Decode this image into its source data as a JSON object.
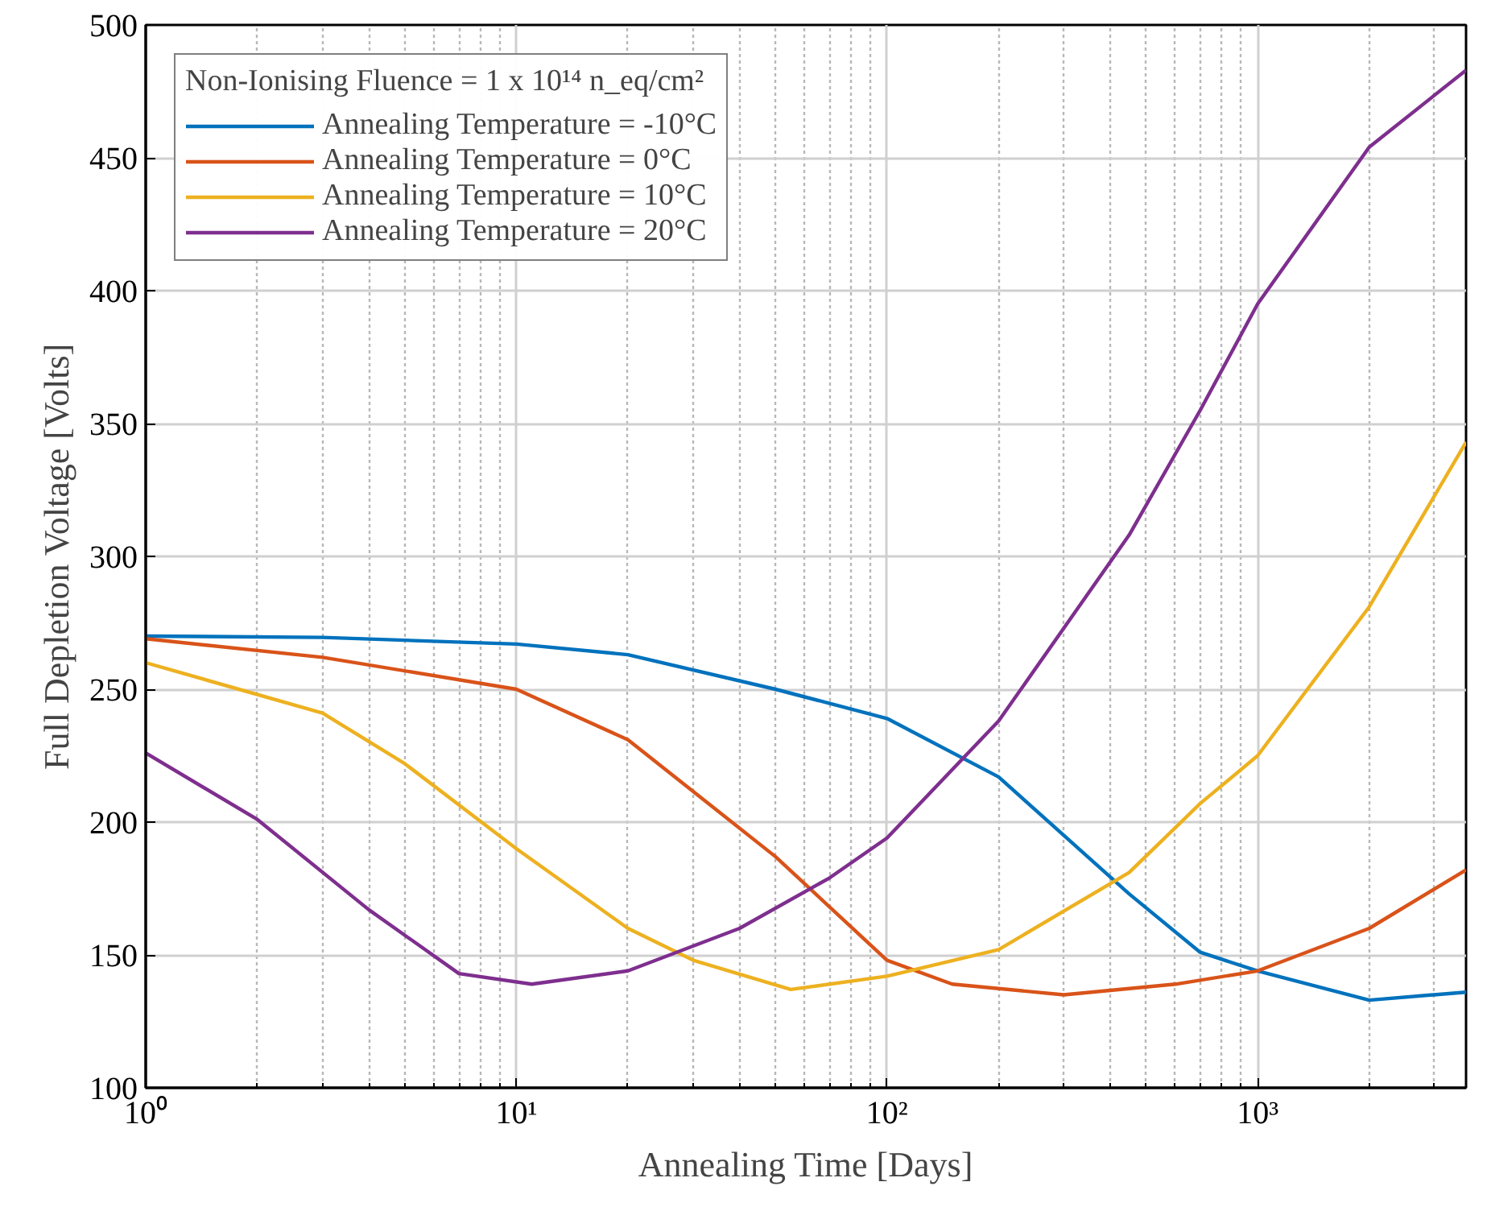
{
  "chart_data": {
    "type": "line",
    "xlabel": "Annealing Time [Days]",
    "ylabel": "Full Depletion Voltage [Volts]",
    "legend_title": "Non-Ionising Fluence = 1 x 10¹⁴ n_eq/cm²",
    "log": "x",
    "xlim": [
      1,
      3650
    ],
    "ylim": [
      100,
      500
    ],
    "xticks": [
      {
        "value": 1,
        "label": "10⁰"
      },
      {
        "value": 2,
        "label": null
      },
      {
        "value": 3,
        "label": null
      },
      {
        "value": 4,
        "label": null
      },
      {
        "value": 5,
        "label": null
      },
      {
        "value": 6,
        "label": null
      },
      {
        "value": 7,
        "label": null
      },
      {
        "value": 8,
        "label": null
      },
      {
        "value": 9,
        "label": null
      },
      {
        "value": 10,
        "label": "10¹"
      },
      {
        "value": 20,
        "label": null
      },
      {
        "value": 30,
        "label": null
      },
      {
        "value": 40,
        "label": null
      },
      {
        "value": 50,
        "label": null
      },
      {
        "value": 60,
        "label": null
      },
      {
        "value": 70,
        "label": null
      },
      {
        "value": 80,
        "label": null
      },
      {
        "value": 90,
        "label": null
      },
      {
        "value": 100,
        "label": "10²"
      },
      {
        "value": 200,
        "label": null
      },
      {
        "value": 300,
        "label": null
      },
      {
        "value": 400,
        "label": null
      },
      {
        "value": 500,
        "label": null
      },
      {
        "value": 600,
        "label": null
      },
      {
        "value": 700,
        "label": null
      },
      {
        "value": 800,
        "label": null
      },
      {
        "value": 900,
        "label": null
      },
      {
        "value": 1000,
        "label": "10³"
      },
      {
        "value": 2000,
        "label": null
      },
      {
        "value": 3000,
        "label": null
      }
    ],
    "yticks": [
      100,
      150,
      200,
      250,
      300,
      350,
      400,
      450,
      500
    ],
    "grid": true,
    "legend": "top left",
    "marker": "none",
    "line_style": "solid",
    "series": [
      {
        "name": "Annealing Temperature = -10°C",
        "color": "#0072bd",
        "x": [
          1,
          3,
          10,
          20,
          50,
          100,
          200,
          450,
          700,
          1000,
          2000,
          3650
        ],
        "values": [
          270,
          269.5,
          267,
          263,
          250,
          239,
          217,
          173,
          151,
          144,
          133,
          136
        ]
      },
      {
        "name": "Annealing Temperature = 0°C",
        "color": "#d95319",
        "x": [
          1,
          3,
          10,
          20,
          50,
          100,
          150,
          300,
          600,
          1000,
          2000,
          3650
        ],
        "values": [
          269,
          262,
          250,
          231,
          187,
          148,
          139,
          135,
          139,
          144,
          160,
          182
        ]
      },
      {
        "name": "Annealing Temperature = 10°C",
        "color": "#edb120",
        "x": [
          1,
          3,
          5,
          10,
          20,
          30,
          55,
          100,
          200,
          450,
          700,
          1000,
          2000,
          3650
        ],
        "values": [
          260,
          241,
          222,
          190,
          160,
          148,
          137,
          142,
          152,
          181,
          207,
          225,
          281,
          343
        ]
      },
      {
        "name": "Annealing Temperature = 20°C",
        "color": "#7e2f8e",
        "x": [
          1,
          2,
          4,
          7,
          11,
          20,
          40,
          70,
          100,
          200,
          450,
          700,
          1000,
          2000,
          3650
        ],
        "values": [
          226,
          201,
          167,
          143,
          139,
          144,
          160,
          179,
          194,
          238,
          308,
          355,
          395,
          454,
          483
        ]
      }
    ]
  }
}
